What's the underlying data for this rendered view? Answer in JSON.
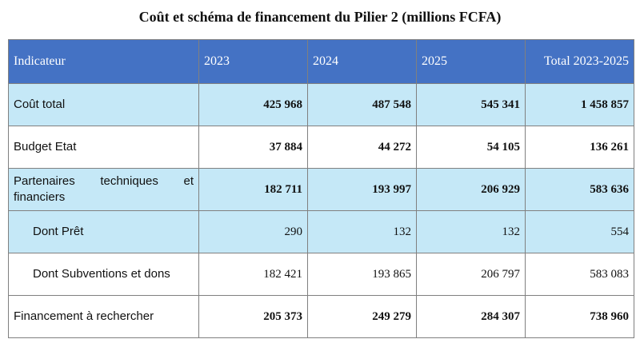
{
  "title": "Coût et schéma de financement du Pilier 2 (millions FCFA)",
  "table": {
    "headers": [
      "Indicateur",
      "2023",
      "2024",
      "2025",
      "Total 2023-2025"
    ],
    "rows": [
      {
        "label": "Coût total",
        "values": [
          "425 968",
          "487 548",
          "545 341",
          "1 458 857"
        ]
      },
      {
        "label": "Budget Etat",
        "values": [
          "37 884",
          "44 272",
          "54 105",
          "136 261"
        ]
      },
      {
        "label": "Partenaires techniques et financiers",
        "values": [
          "182 711",
          "193 997",
          "206 929",
          "583 636"
        ]
      },
      {
        "label": "Dont Prêt",
        "values": [
          "290",
          "132",
          "132",
          "554"
        ]
      },
      {
        "label": "Dont Subventions et dons",
        "values": [
          "182 421",
          "193 865",
          "206 797",
          "583 083"
        ]
      },
      {
        "label": "Financement à rechercher",
        "values": [
          "205 373",
          "249 279",
          "284 307",
          "738 960"
        ]
      }
    ]
  },
  "colors": {
    "header_bg": "#4472c4",
    "shaded_row_bg": "#c5e8f7",
    "border": "#808080"
  }
}
